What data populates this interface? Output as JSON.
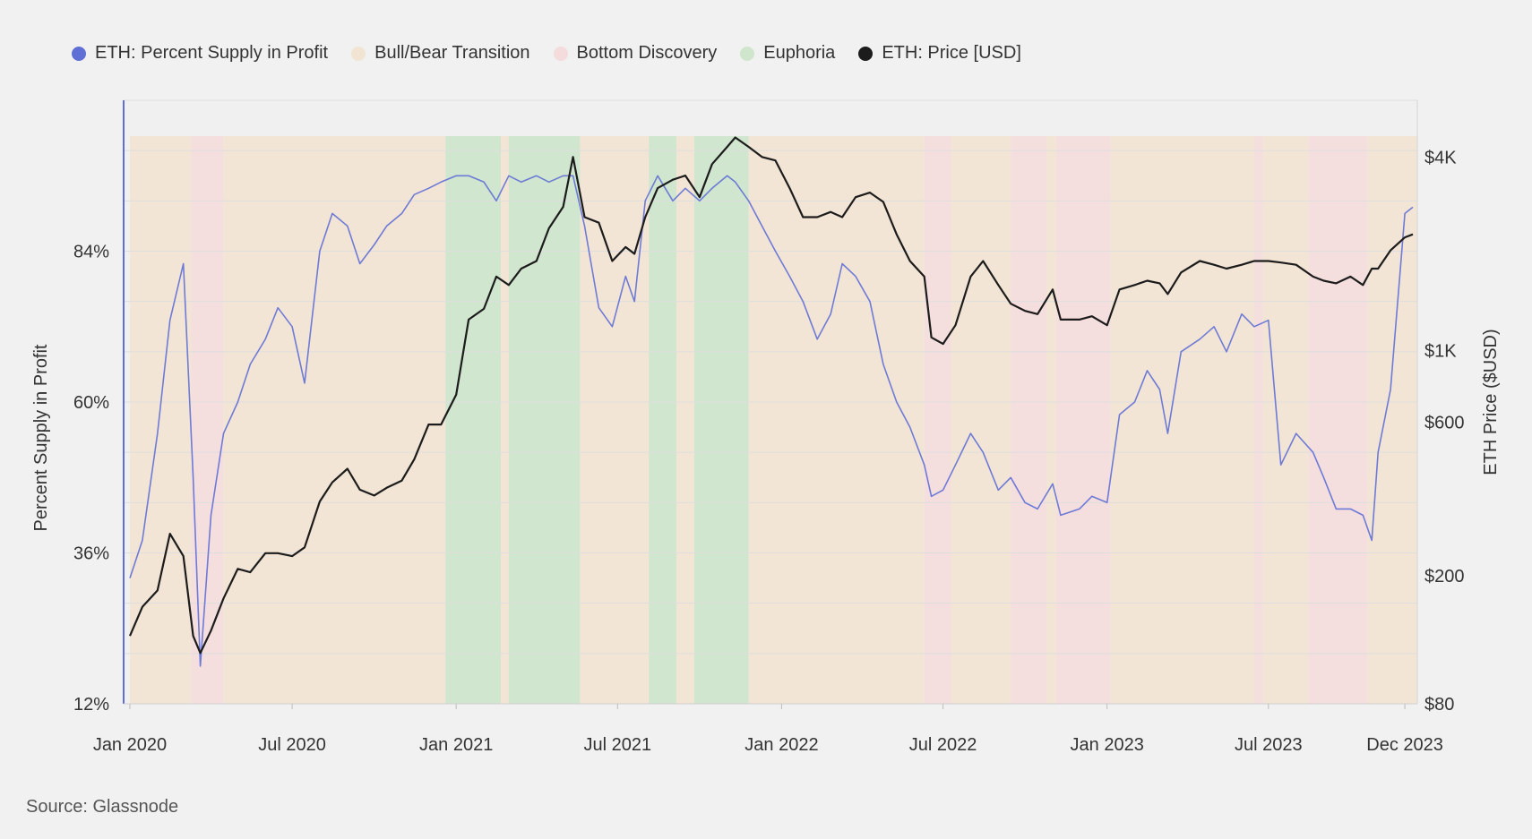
{
  "legend": [
    {
      "label": "ETH: Percent Supply in Profit",
      "color": "#5f6fd6"
    },
    {
      "label": "Bull/Bear Transition",
      "color": "#f2e4d3"
    },
    {
      "label": "Bottom Discovery",
      "color": "#f4dcdc"
    },
    {
      "label": "Euphoria",
      "color": "#cfe5cc"
    },
    {
      "label": "ETH: Price [USD]",
      "color": "#1c1c1c"
    }
  ],
  "source": "Source: Glassnode",
  "chart_data": {
    "type": "line",
    "x": [
      "2020-01-01",
      "2020-01-15",
      "2020-02-01",
      "2020-02-15",
      "2020-03-01",
      "2020-03-12",
      "2020-03-20",
      "2020-04-01",
      "2020-04-15",
      "2020-05-01",
      "2020-05-15",
      "2020-06-01",
      "2020-06-15",
      "2020-07-01",
      "2020-07-15",
      "2020-08-01",
      "2020-08-15",
      "2020-09-01",
      "2020-09-15",
      "2020-10-01",
      "2020-10-15",
      "2020-11-01",
      "2020-11-15",
      "2020-12-01",
      "2020-12-15",
      "2021-01-01",
      "2021-01-15",
      "2021-02-01",
      "2021-02-15",
      "2021-03-01",
      "2021-03-15",
      "2021-04-01",
      "2021-04-15",
      "2021-05-01",
      "2021-05-12",
      "2021-05-25",
      "2021-06-10",
      "2021-06-25",
      "2021-07-10",
      "2021-07-20",
      "2021-08-01",
      "2021-08-15",
      "2021-09-01",
      "2021-09-15",
      "2021-10-01",
      "2021-10-15",
      "2021-11-01",
      "2021-11-10",
      "2021-11-25",
      "2021-12-10",
      "2021-12-25",
      "2022-01-10",
      "2022-01-25",
      "2022-02-10",
      "2022-02-25",
      "2022-03-10",
      "2022-03-25",
      "2022-04-10",
      "2022-04-25",
      "2022-05-10",
      "2022-05-25",
      "2022-06-10",
      "2022-06-18",
      "2022-07-01",
      "2022-07-15",
      "2022-08-01",
      "2022-08-15",
      "2022-09-01",
      "2022-09-15",
      "2022-10-01",
      "2022-10-15",
      "2022-11-01",
      "2022-11-10",
      "2022-12-01",
      "2022-12-15",
      "2023-01-01",
      "2023-01-15",
      "2023-02-01",
      "2023-02-15",
      "2023-03-01",
      "2023-03-10",
      "2023-03-25",
      "2023-04-15",
      "2023-05-01",
      "2023-05-15",
      "2023-06-01",
      "2023-06-15",
      "2023-07-01",
      "2023-07-15",
      "2023-08-01",
      "2023-08-20",
      "2023-09-01",
      "2023-09-15",
      "2023-10-01",
      "2023-10-15",
      "2023-10-25",
      "2023-11-01",
      "2023-11-15",
      "2023-12-01",
      "2023-12-10"
    ],
    "series": [
      {
        "name": "ETH: Percent Supply in Profit",
        "axis": "left",
        "color": "#5f6fd6",
        "values": [
          32,
          38,
          55,
          73,
          82,
          48,
          18,
          42,
          55,
          60,
          66,
          70,
          75,
          72,
          63,
          84,
          90,
          88,
          82,
          85,
          88,
          90,
          93,
          94,
          95,
          96,
          96,
          95,
          92,
          96,
          95,
          96,
          95,
          96,
          96,
          88,
          75,
          72,
          80,
          76,
          92,
          96,
          92,
          94,
          92,
          94,
          96,
          95,
          92,
          88,
          84,
          80,
          76,
          70,
          74,
          82,
          80,
          76,
          66,
          60,
          56,
          50,
          45,
          46,
          50,
          55,
          52,
          46,
          48,
          44,
          43,
          47,
          42,
          43,
          45,
          44,
          58,
          60,
          65,
          62,
          55,
          68,
          70,
          72,
          68,
          74,
          72,
          73,
          50,
          55,
          52,
          48,
          43,
          43,
          42,
          38,
          52,
          62,
          90,
          91
        ],
        "note": "Values in percent; estimated from chart"
      },
      {
        "name": "ETH: Price [USD]",
        "axis": "right",
        "color": "#1c1c1c",
        "values": [
          130,
          160,
          180,
          270,
          230,
          130,
          115,
          135,
          170,
          210,
          205,
          235,
          235,
          230,
          245,
          340,
          390,
          430,
          370,
          355,
          375,
          395,
          460,
          590,
          590,
          730,
          1250,
          1350,
          1700,
          1600,
          1800,
          1900,
          2400,
          2800,
          4000,
          2600,
          2500,
          1900,
          2100,
          2000,
          2600,
          3200,
          3400,
          3500,
          3000,
          3800,
          4300,
          4600,
          4300,
          4000,
          3900,
          3200,
          2600,
          2600,
          2700,
          2600,
          3000,
          3100,
          2900,
          2300,
          1900,
          1700,
          1100,
          1050,
          1200,
          1700,
          1900,
          1600,
          1400,
          1330,
          1300,
          1550,
          1250,
          1250,
          1280,
          1200,
          1550,
          1600,
          1650,
          1620,
          1500,
          1750,
          1900,
          1850,
          1800,
          1850,
          1900,
          1900,
          1880,
          1850,
          1700,
          1650,
          1620,
          1700,
          1600,
          1800,
          1800,
          2050,
          2250,
          2300
        ]
      }
    ],
    "phases": [
      {
        "phase": "Bull/Bear Transition",
        "start": "2020-01-01",
        "end": "2020-03-10"
      },
      {
        "phase": "Bottom Discovery",
        "start": "2020-03-10",
        "end": "2020-04-15"
      },
      {
        "phase": "Bull/Bear Transition",
        "start": "2020-04-15",
        "end": "2020-12-20"
      },
      {
        "phase": "Euphoria",
        "start": "2020-12-20",
        "end": "2021-02-20"
      },
      {
        "phase": "Bull/Bear Transition",
        "start": "2021-02-20",
        "end": "2021-03-01"
      },
      {
        "phase": "Euphoria",
        "start": "2021-03-01",
        "end": "2021-05-20"
      },
      {
        "phase": "Bull/Bear Transition",
        "start": "2021-05-20",
        "end": "2021-08-05"
      },
      {
        "phase": "Euphoria",
        "start": "2021-08-05",
        "end": "2021-09-05"
      },
      {
        "phase": "Bull/Bear Transition",
        "start": "2021-09-05",
        "end": "2021-09-25"
      },
      {
        "phase": "Euphoria",
        "start": "2021-09-25",
        "end": "2021-11-25"
      },
      {
        "phase": "Bull/Bear Transition",
        "start": "2021-11-25",
        "end": "2022-06-10"
      },
      {
        "phase": "Bottom Discovery",
        "start": "2022-06-10",
        "end": "2022-07-10"
      },
      {
        "phase": "Bull/Bear Transition",
        "start": "2022-07-10",
        "end": "2022-09-15"
      },
      {
        "phase": "Bottom Discovery",
        "start": "2022-09-15",
        "end": "2022-10-25"
      },
      {
        "phase": "Bull/Bear Transition",
        "start": "2022-10-25",
        "end": "2022-11-05"
      },
      {
        "phase": "Bottom Discovery",
        "start": "2022-11-05",
        "end": "2023-01-05"
      },
      {
        "phase": "Bull/Bear Transition",
        "start": "2023-01-05",
        "end": "2023-06-15"
      },
      {
        "phase": "Bottom Discovery",
        "start": "2023-06-15",
        "end": "2023-06-25"
      },
      {
        "phase": "Bull/Bear Transition",
        "start": "2023-06-25",
        "end": "2023-08-15"
      },
      {
        "phase": "Bottom Discovery",
        "start": "2023-08-15",
        "end": "2023-10-20"
      },
      {
        "phase": "Bull/Bear Transition",
        "start": "2023-10-20",
        "end": "2023-12-15"
      }
    ],
    "phase_colors": {
      "Bull/Bear Transition": "#f2e4d3",
      "Bottom Discovery": "#f4dcdc",
      "Euphoria": "#cfe5cc"
    },
    "x_ticks": [
      {
        "label": "Jan 2020",
        "date": "2020-01-01"
      },
      {
        "label": "Jul 2020",
        "date": "2020-07-01"
      },
      {
        "label": "Jan 2021",
        "date": "2021-01-01"
      },
      {
        "label": "Jul 2021",
        "date": "2021-07-01"
      },
      {
        "label": "Jan 2022",
        "date": "2022-01-01"
      },
      {
        "label": "Jul 2022",
        "date": "2022-07-01"
      },
      {
        "label": "Jan 2023",
        "date": "2023-01-01"
      },
      {
        "label": "Jul 2023",
        "date": "2023-07-01"
      },
      {
        "label": "Dec 2023",
        "date": "2023-12-01"
      }
    ],
    "x_range": [
      "2019-12-25",
      "2023-12-15"
    ],
    "y_left": {
      "label": "Percent Supply in Profit",
      "ticks": [
        {
          "label": "12%",
          "value": 12
        },
        {
          "label": "36%",
          "value": 36
        },
        {
          "label": "60%",
          "value": 60
        },
        {
          "label": "84%",
          "value": 84
        }
      ],
      "range": [
        12,
        108
      ]
    },
    "y_right": {
      "label": "ETH Price ($USD)",
      "scale": "log",
      "ticks": [
        {
          "label": "$80",
          "value": 80
        },
        {
          "label": "$200",
          "value": 200
        },
        {
          "label": "$600",
          "value": 600
        },
        {
          "label": "$1K",
          "value": 1000
        },
        {
          "label": "$4K",
          "value": 4000
        }
      ],
      "range": [
        80,
        6000
      ]
    },
    "grid": true,
    "legend_position": "top-left"
  }
}
